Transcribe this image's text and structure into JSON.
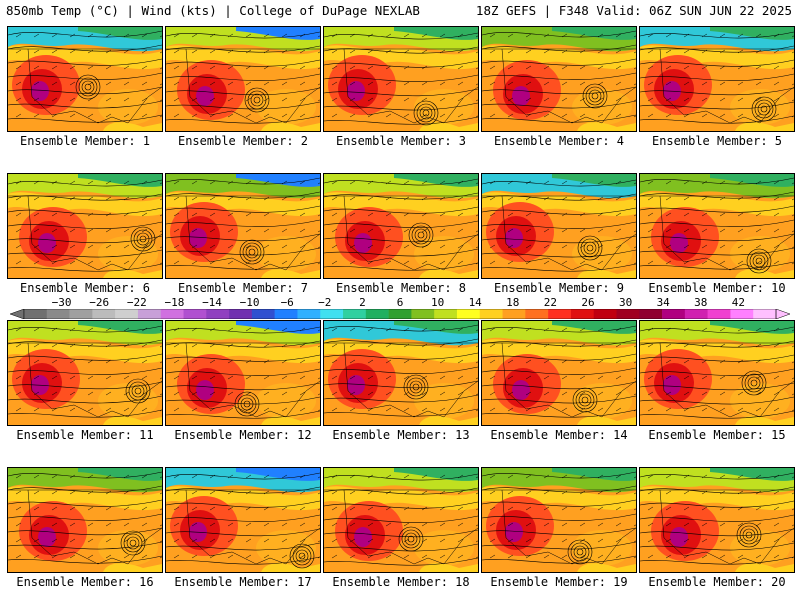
{
  "header": {
    "left_title": "850mb Temp (°C) | Wind (kts) | College of DuPage NEXLAB",
    "right_title": "18Z GEFS | F348 Valid: 06Z SUN JUN 22 2025"
  },
  "panels": [
    {
      "label": "Ensemble Member: 1"
    },
    {
      "label": "Ensemble Member: 2"
    },
    {
      "label": "Ensemble Member: 3"
    },
    {
      "label": "Ensemble Member: 4"
    },
    {
      "label": "Ensemble Member: 5"
    },
    {
      "label": "Ensemble Member: 6"
    },
    {
      "label": "Ensemble Member: 7"
    },
    {
      "label": "Ensemble Member: 8"
    },
    {
      "label": "Ensemble Member: 9"
    },
    {
      "label": "Ensemble Member: 10"
    },
    {
      "label": "Ensemble Member: 11"
    },
    {
      "label": "Ensemble Member: 12"
    },
    {
      "label": "Ensemble Member: 13"
    },
    {
      "label": "Ensemble Member: 14"
    },
    {
      "label": "Ensemble Member: 15"
    },
    {
      "label": "Ensemble Member: 16"
    },
    {
      "label": "Ensemble Member: 17"
    },
    {
      "label": "Ensemble Member: 18"
    },
    {
      "label": "Ensemble Member: 19"
    },
    {
      "label": "Ensemble Member: 20"
    }
  ],
  "colorbar": {
    "tick_labels": [
      "−30",
      "−26",
      "−22",
      "−18",
      "−14",
      "−10",
      "−6",
      "−2",
      "2",
      "6",
      "10",
      "14",
      "18",
      "22",
      "26",
      "30",
      "34",
      "38",
      "42"
    ],
    "colors": [
      "#707070",
      "#8a8a8a",
      "#a0a0a0",
      "#bcbcbc",
      "#cfcfcf",
      "#c8a0d8",
      "#d070e0",
      "#b050d0",
      "#9040c0",
      "#7030b0",
      "#3050d0",
      "#2080ff",
      "#30b0ff",
      "#40e0f0",
      "#30d0a0",
      "#20b060",
      "#30a030",
      "#80c020",
      "#c0e020",
      "#ffff20",
      "#ffd020",
      "#ffa020",
      "#ff7020",
      "#ff3020",
      "#e01010",
      "#c00010",
      "#a00020",
      "#900030",
      "#b00080",
      "#d020b0",
      "#f040d0",
      "#ff80ff",
      "#ffc0ff"
    ],
    "min": -34,
    "max": 46
  }
}
